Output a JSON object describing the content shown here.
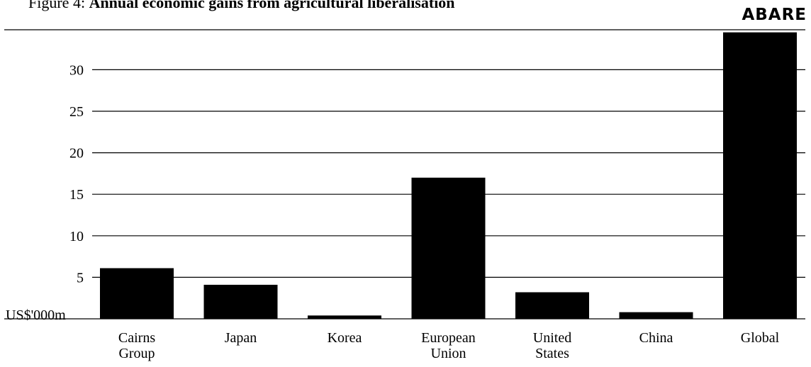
{
  "figure": {
    "number_label": "Figure 4:",
    "title": "Annual economic gains from agricultural liberalisation"
  },
  "logo_text": "ABARE",
  "chart_data": {
    "type": "bar",
    "title": "Annual economic gains from agricultural liberalisation",
    "ylabel": "US$'000m",
    "xlabel": "",
    "categories": [
      [
        "Cairns",
        "Group"
      ],
      [
        "Japan"
      ],
      [
        "Korea"
      ],
      [
        "European",
        "Union"
      ],
      [
        "United",
        "States"
      ],
      [
        "China"
      ],
      [
        "Global"
      ]
    ],
    "values": [
      6.1,
      4.1,
      0.4,
      17.0,
      3.2,
      0.8,
      34.5
    ],
    "yticks": [
      5,
      10,
      15,
      20,
      25,
      30
    ],
    "ylim": [
      0,
      35
    ],
    "grid": true,
    "bar_color": "#000000",
    "gridline_color": "#000000"
  }
}
